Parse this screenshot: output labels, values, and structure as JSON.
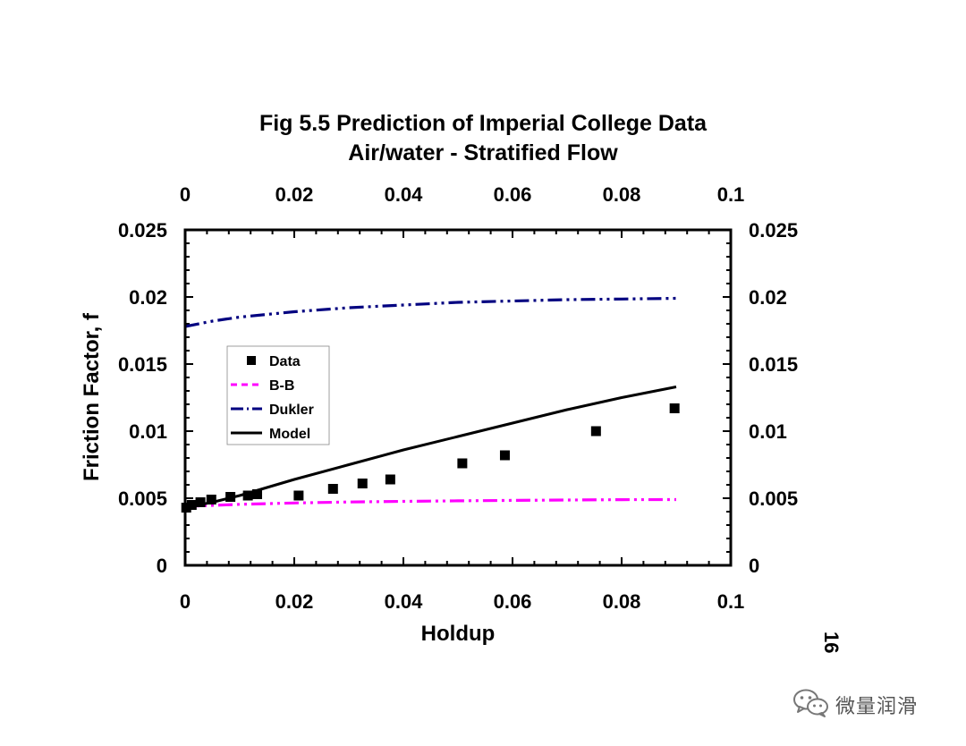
{
  "chart_data": {
    "type": "scatter",
    "title": "Fig 5.5 Prediction of Imperial College Data",
    "subtitle": "Air/water - Stratified Flow",
    "xlabel": "Holdup",
    "ylabel": "Friction Factor, f",
    "xlim": [
      0,
      0.1
    ],
    "ylim": [
      0,
      0.025
    ],
    "x_ticks": [
      "0",
      "0.02",
      "0.04",
      "0.06",
      "0.08",
      "0.1"
    ],
    "y_ticks": [
      "0",
      "0.005",
      "0.01",
      "0.015",
      "0.02",
      "0.025"
    ],
    "grid": false,
    "legend_position": "upper-left",
    "series": [
      {
        "name": "Data",
        "kind": "markers",
        "marker": "square",
        "color": "#000000",
        "x": [
          0.0002,
          0.0012,
          0.0028,
          0.0048,
          0.0083,
          0.0115,
          0.0132,
          0.0208,
          0.0271,
          0.0325,
          0.0376,
          0.0508,
          0.0586,
          0.0753,
          0.0897
        ],
        "y": [
          0.0043,
          0.0045,
          0.0047,
          0.0049,
          0.0051,
          0.0052,
          0.0053,
          0.0052,
          0.0057,
          0.0061,
          0.0064,
          0.0076,
          0.0082,
          0.01,
          0.0117
        ]
      },
      {
        "name": "B-B",
        "kind": "line",
        "style": "dash-dot-dot",
        "color": "#ff00ff",
        "x": [
          0.0,
          0.005,
          0.01,
          0.02,
          0.03,
          0.04,
          0.05,
          0.06,
          0.07,
          0.08,
          0.09
        ],
        "y": [
          0.0044,
          0.00447,
          0.00455,
          0.00465,
          0.00472,
          0.00477,
          0.00481,
          0.00484,
          0.00487,
          0.00489,
          0.0049
        ]
      },
      {
        "name": "Dukler",
        "kind": "line",
        "style": "dash-dot-dot",
        "color": "#000080",
        "x": [
          0.0,
          0.005,
          0.01,
          0.02,
          0.03,
          0.04,
          0.05,
          0.06,
          0.07,
          0.08,
          0.09
        ],
        "y": [
          0.0178,
          0.0182,
          0.0185,
          0.0189,
          0.0192,
          0.0194,
          0.0196,
          0.0197,
          0.0198,
          0.01985,
          0.0199
        ]
      },
      {
        "name": "Model",
        "kind": "line",
        "style": "solid",
        "color": "#000000",
        "x": [
          0.0,
          0.005,
          0.01,
          0.015,
          0.02,
          0.03,
          0.04,
          0.05,
          0.06,
          0.07,
          0.08,
          0.09
        ],
        "y": [
          0.0043,
          0.0047,
          0.0052,
          0.0058,
          0.0064,
          0.0075,
          0.0086,
          0.0096,
          0.0106,
          0.0116,
          0.0125,
          0.0133
        ]
      }
    ]
  },
  "page_number": "16",
  "watermark": {
    "icon": "wechat-icon",
    "text": "微量润滑"
  }
}
